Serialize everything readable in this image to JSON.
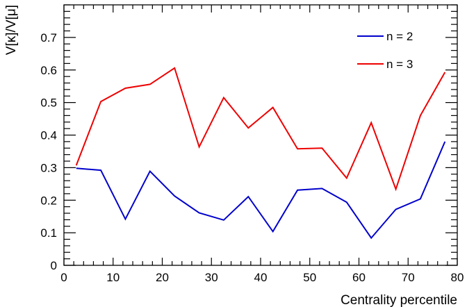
{
  "chart_data": {
    "type": "line",
    "xlabel": "Centrality percentile",
    "ylabel": "V[κ]/V[μ]",
    "xlim": [
      0,
      80
    ],
    "ylim": [
      0,
      0.8
    ],
    "grid": false,
    "legend_position": "top-right",
    "x_ticks": [
      0,
      10,
      20,
      30,
      40,
      50,
      60,
      70,
      80
    ],
    "y_ticks": [
      0,
      0.1,
      0.2,
      0.3,
      0.4,
      0.5,
      0.6,
      0.7
    ],
    "x_tick_labels": [
      "0",
      "10",
      "20",
      "30",
      "40",
      "50",
      "60",
      "70",
      "80"
    ],
    "y_tick_labels": [
      "0",
      "0.1",
      "0.2",
      "0.3",
      "0.4",
      "0.5",
      "0.6",
      "0.7"
    ],
    "x": [
      2.5,
      7.5,
      12.5,
      17.5,
      22.5,
      27.5,
      32.5,
      37.5,
      42.5,
      47.5,
      52.5,
      57.5,
      62.5,
      67.5,
      72.5,
      77.5
    ],
    "series": [
      {
        "name": "n = 2",
        "color": "#0000cc",
        "values": [
          0.298,
          0.292,
          0.142,
          0.289,
          0.213,
          0.161,
          0.139,
          0.211,
          0.104,
          0.231,
          0.236,
          0.194,
          0.084,
          0.172,
          0.204,
          0.38
        ]
      },
      {
        "name": "n = 3",
        "color": "#ee0000",
        "values": [
          0.307,
          0.503,
          0.544,
          0.556,
          0.606,
          0.364,
          0.515,
          0.422,
          0.485,
          0.358,
          0.36,
          0.268,
          0.438,
          0.234,
          0.46,
          0.593
        ]
      }
    ]
  }
}
